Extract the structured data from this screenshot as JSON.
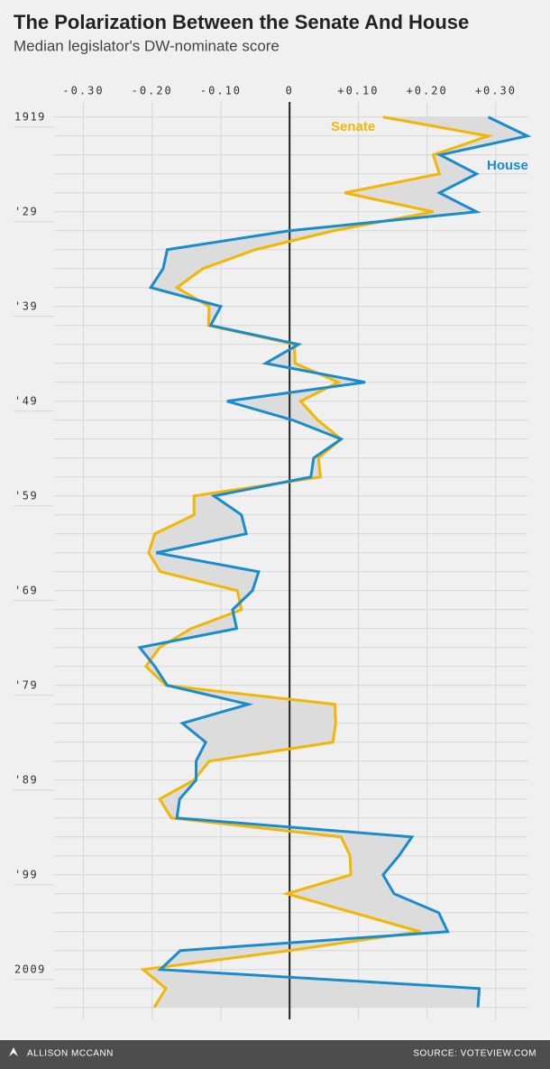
{
  "chart_data": {
    "type": "line",
    "title": "The Polarization Between the Senate And House",
    "subtitle": "Median legislator's DW-nominate score",
    "y": [
      1919,
      1921,
      1923,
      1925,
      1927,
      1929,
      1931,
      1933,
      1935,
      1937,
      1939,
      1941,
      1943,
      1945,
      1947,
      1949,
      1951,
      1953,
      1955,
      1957,
      1959,
      1961,
      1963,
      1965,
      1967,
      1969,
      1971,
      1973,
      1975,
      1977,
      1979,
      1981,
      1983,
      1985,
      1987,
      1989,
      1991,
      1993,
      1995,
      1997,
      1999,
      2001,
      2003,
      2005,
      2007,
      2009,
      2011,
      2013
    ],
    "series": [
      {
        "name": "Senate",
        "color": "#f2b705",
        "values": [
          0.136,
          0.289,
          0.209,
          0.218,
          0.08,
          0.209,
          0.064,
          -0.05,
          -0.126,
          -0.164,
          -0.117,
          -0.118,
          0.007,
          0.008,
          0.071,
          0.016,
          0.041,
          0.075,
          0.042,
          0.045,
          -0.139,
          -0.139,
          -0.196,
          -0.205,
          -0.188,
          -0.076,
          -0.07,
          -0.143,
          -0.189,
          -0.209,
          -0.18,
          0.066,
          0.067,
          0.063,
          -0.117,
          -0.139,
          -0.189,
          -0.172,
          0.075,
          0.088,
          0.089,
          -0.004,
          0.093,
          0.19,
          -0.001,
          -0.213,
          -0.18,
          -0.197
        ]
      },
      {
        "name": "House",
        "color": "#1a8ccc",
        "values": [
          0.289,
          0.346,
          0.219,
          0.272,
          0.218,
          0.272,
          0.0,
          -0.178,
          -0.184,
          -0.202,
          -0.1,
          -0.115,
          0.013,
          -0.035,
          0.11,
          -0.091,
          0.005,
          0.075,
          0.035,
          0.031,
          -0.11,
          -0.07,
          -0.063,
          -0.194,
          -0.045,
          -0.054,
          -0.083,
          -0.077,
          -0.218,
          -0.196,
          -0.178,
          -0.06,
          -0.156,
          -0.122,
          -0.136,
          -0.136,
          -0.16,
          -0.164,
          0.178,
          0.159,
          0.136,
          0.152,
          0.217,
          0.23,
          -0.159,
          -0.188,
          0.276,
          0.274
        ]
      }
    ],
    "xlim": [
      -0.34,
      0.35
    ],
    "xticks": [
      {
        "value": -0.3,
        "label": "-0.30"
      },
      {
        "value": -0.2,
        "label": "-0.20"
      },
      {
        "value": -0.1,
        "label": "-0.10"
      },
      0,
      {
        "value": 0.1,
        "label": "+0.10"
      },
      {
        "value": 0.2,
        "label": "+0.20"
      },
      {
        "value": 0.3,
        "label": "+0.30"
      }
    ],
    "ylim": [
      1917.5,
      2014.5
    ],
    "yticks": [
      1919,
      {
        "value": 1929,
        "label": "'29"
      },
      {
        "value": 1939,
        "label": "'39"
      },
      {
        "value": 1949,
        "label": "'49"
      },
      {
        "value": 1959,
        "label": "'59"
      },
      {
        "value": 1969,
        "label": "'69"
      },
      {
        "value": 1979,
        "label": "'79"
      },
      {
        "value": 1989,
        "label": "'89"
      },
      {
        "value": 1999,
        "label": "'99"
      },
      2009
    ],
    "fill_between": "#dcdcdc",
    "grid": true
  },
  "footer": {
    "credit": "ALLISON MCCANN",
    "source": "SOURCE: VOTEVIEW.COM"
  }
}
